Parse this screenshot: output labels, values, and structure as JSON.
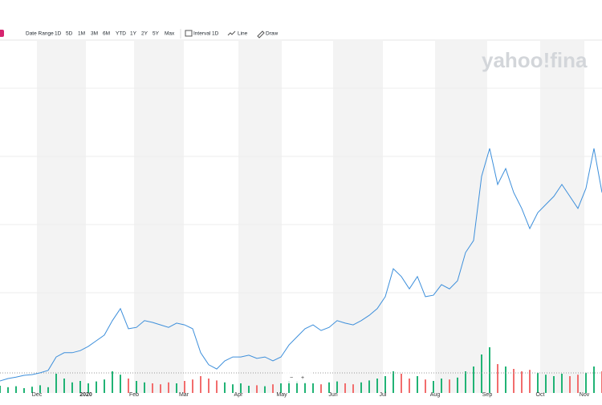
{
  "toolbar": {
    "date_range": "Date Range",
    "ranges": [
      "1D",
      "5D",
      "1M",
      "3M",
      "6M",
      "YTD",
      "1Y",
      "2Y",
      "5Y",
      "Max"
    ],
    "interval": "Interval",
    "interval_value": "1D",
    "chart_style": "Line",
    "draw": "Draw"
  },
  "watermark": "yahoo!fina",
  "chart_data": {
    "type": "line",
    "x": [
      0,
      1,
      2,
      3,
      4,
      5,
      6,
      7,
      8,
      9,
      10,
      11,
      12,
      13,
      14,
      15,
      16,
      17,
      18,
      19,
      20,
      21,
      22,
      23,
      24,
      25,
      26,
      27,
      28,
      29,
      30,
      31,
      32,
      33,
      34,
      35,
      36,
      37,
      38,
      39,
      40,
      41,
      42,
      43,
      44,
      45,
      46,
      47,
      48,
      49,
      50,
      51,
      52,
      53,
      54,
      55,
      56,
      57,
      58,
      59,
      60,
      61,
      62,
      63,
      64,
      65,
      66,
      67,
      68,
      69,
      70,
      71,
      72,
      73,
      74,
      75
    ],
    "xlim": [
      0,
      75
    ],
    "xticks": [
      {
        "value": 4.6,
        "label": "Dec"
      },
      {
        "value": 10.7,
        "label": "2020"
      },
      {
        "value": 16.7,
        "label": "Feb"
      },
      {
        "value": 22.9,
        "label": "Mar"
      },
      {
        "value": 29.7,
        "label": "Apr"
      },
      {
        "value": 35.1,
        "label": "May"
      },
      {
        "value": 41.5,
        "label": "Jun"
      },
      {
        "value": 47.7,
        "label": "Jul"
      },
      {
        "value": 54.2,
        "label": "Aug"
      },
      {
        "value": 60.7,
        "label": "Sep"
      },
      {
        "value": 67.3,
        "label": "Oct"
      },
      {
        "value": 72.8,
        "label": "Nov"
      }
    ],
    "ylim": [
      0,
      100
    ],
    "series": [
      {
        "color": "#3d8fdb",
        "values": [
          3.4,
          4.1,
          4.5,
          5.0,
          5.2,
          5.7,
          6.4,
          10.2,
          11.4,
          11.4,
          12.0,
          13.2,
          14.8,
          16.4,
          20.5,
          23.9,
          18.2,
          18.6,
          20.5,
          20.0,
          19.3,
          18.6,
          19.8,
          19.3,
          18.2,
          11.4,
          8.0,
          6.8,
          9.1,
          10.2,
          10.2,
          10.7,
          9.8,
          10.2,
          9.1,
          10.2,
          13.6,
          15.9,
          18.2,
          19.3,
          17.7,
          18.6,
          20.5,
          19.8,
          19.3,
          20.5,
          22.0,
          23.9,
          27.3,
          35.2,
          33.0,
          29.5,
          33.0,
          27.3,
          27.7,
          30.7,
          29.5,
          31.8,
          39.8,
          43.2,
          61.4,
          69.3,
          59.1,
          63.6,
          56.8,
          52.3,
          46.6,
          51.1,
          53.4,
          55.7,
          59.1,
          55.7,
          52.3,
          58.0,
          69.3,
          56.8
        ]
      }
    ],
    "volume": {
      "ylim": [
        0,
        100
      ],
      "up_color": "#21b375",
      "down_color": "#f26d6d",
      "values": [
        15,
        12,
        14,
        10,
        13,
        16,
        12,
        40,
        30,
        22,
        25,
        20,
        24,
        28,
        45,
        38,
        30,
        25,
        22,
        20,
        18,
        22,
        20,
        25,
        28,
        35,
        30,
        26,
        22,
        18,
        20,
        15,
        16,
        14,
        18,
        20,
        25,
        24,
        22,
        20,
        18,
        22,
        24,
        20,
        18,
        22,
        26,
        30,
        35,
        45,
        40,
        30,
        35,
        28,
        25,
        30,
        28,
        32,
        45,
        55,
        80,
        95,
        60,
        55,
        50,
        45,
        48,
        42,
        38,
        35,
        40,
        35,
        38,
        42,
        55,
        45
      ]
    }
  }
}
